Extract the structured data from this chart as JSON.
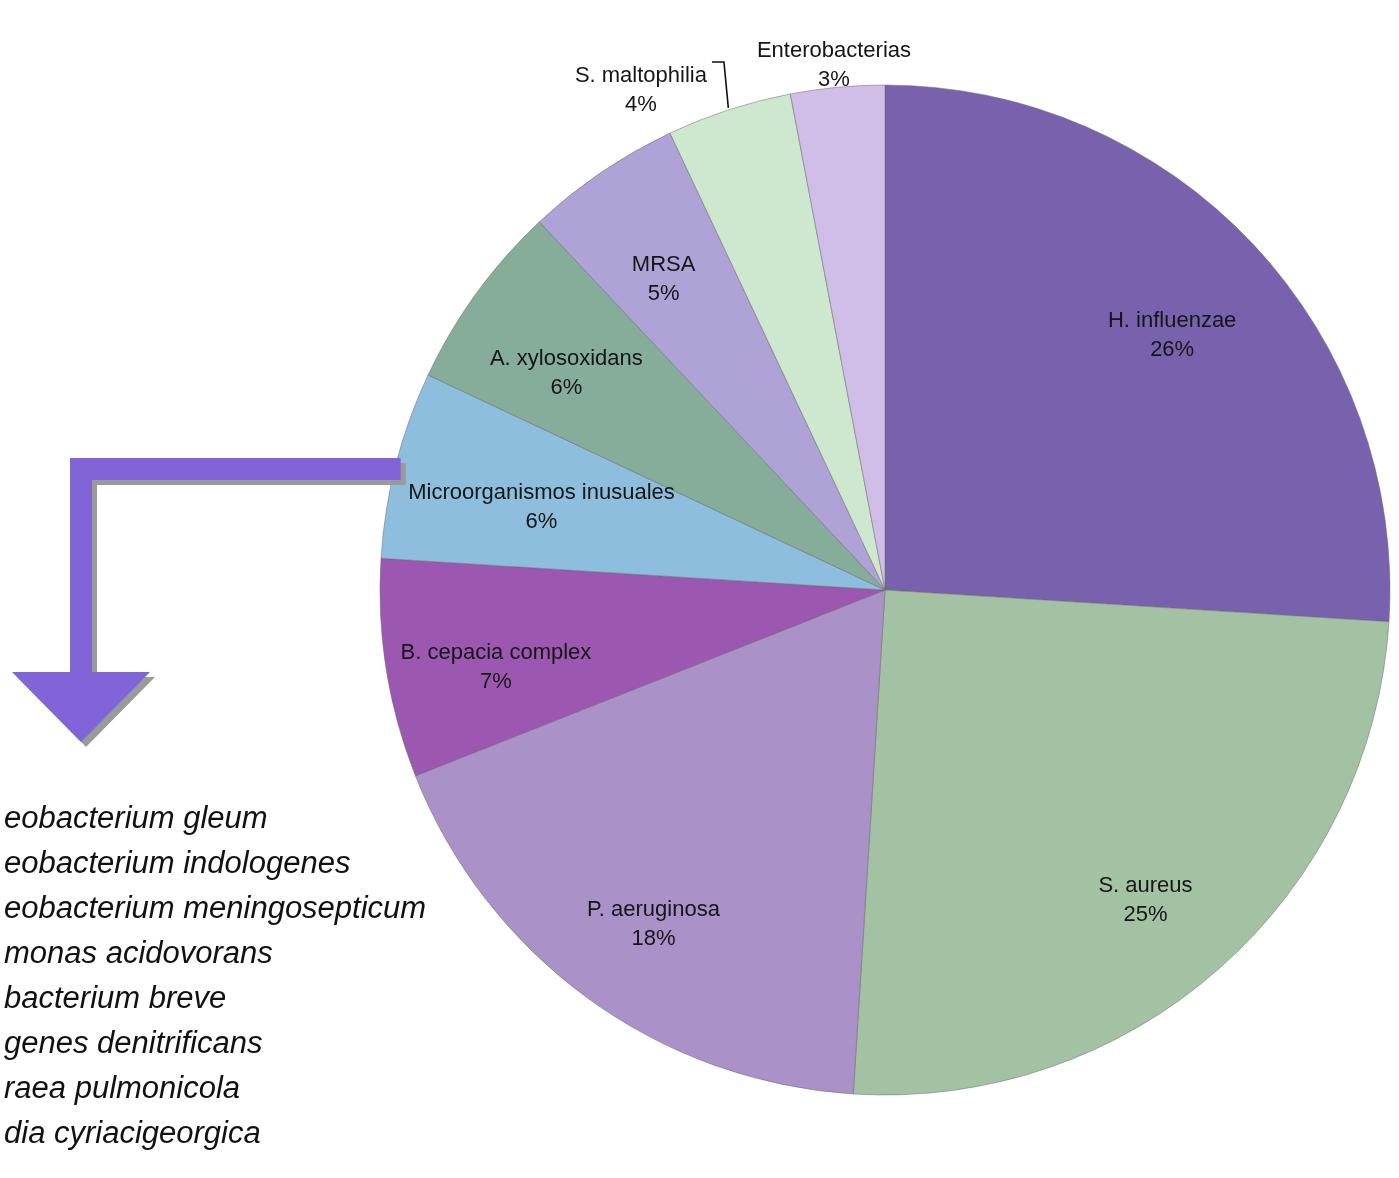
{
  "chart_data": {
    "type": "pie",
    "categories": [
      "H. influenzae",
      "S. aureus",
      "P. aeruginosa",
      "B. cepacia complex",
      "Microorganismos inusuales",
      "A. xylosoxidans",
      "MRSA",
      "S. maltophilia",
      "Enterobacterias"
    ],
    "values": [
      26,
      25,
      18,
      7,
      6,
      6,
      5,
      4,
      3
    ],
    "value_labels": [
      "26%",
      "25%",
      "18%",
      "7%",
      "6%",
      "6%",
      "5%",
      "4%",
      "3%"
    ],
    "colors": [
      "#7862ad",
      "#a3c2a3",
      "#aa91c8",
      "#9c58b0",
      "#8dbedd",
      "#85ad99",
      "#afa2d7",
      "#cee7cf",
      "#d0bde8"
    ],
    "annotations": [
      "eobacterium gleum",
      "eobacterium indologenes",
      "eobacterium meningosepticum",
      "monas acidovorans",
      "bacterium breve",
      "genes denitrificans",
      "raea pulmonicola",
      "dia cyriacigeorgica"
    ]
  }
}
